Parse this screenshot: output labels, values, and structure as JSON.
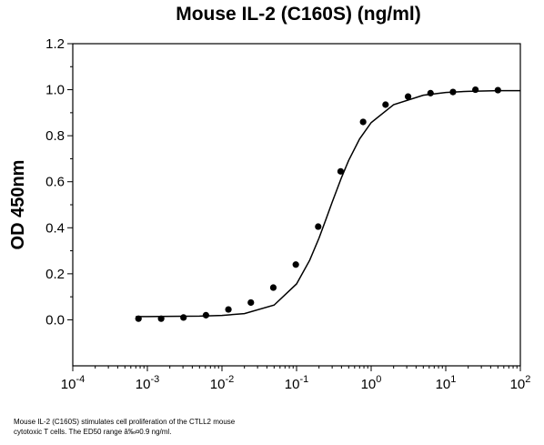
{
  "chart_data": {
    "type": "scatter",
    "title": "Mouse IL-2 (C160S) (ng/ml)",
    "xlabel": "",
    "ylabel": "OD 450nm",
    "x_scale": "log",
    "xlim": [
      0.0001,
      100
    ],
    "ylim": [
      -0.2,
      1.2
    ],
    "x_tick_labels": [
      {
        "base": "10",
        "exp": "-4"
      },
      {
        "base": "10",
        "exp": "-3"
      },
      {
        "base": "10",
        "exp": "-2"
      },
      {
        "base": "10",
        "exp": "-1"
      },
      {
        "base": "10",
        "exp": "0"
      },
      {
        "base": "10",
        "exp": "1"
      },
      {
        "base": "10",
        "exp": "2"
      }
    ],
    "y_tick_labels": [
      "0.0",
      "0.2",
      "0.4",
      "0.6",
      "0.8",
      "1.0",
      "1.2"
    ],
    "grid": false,
    "legend": "none",
    "series": [
      {
        "style": "points",
        "x": [
          0.00076,
          0.00153,
          0.00305,
          0.0061,
          0.0122,
          0.0244,
          0.0488,
          0.0977,
          0.195,
          0.39,
          0.78,
          1.56,
          3.125,
          6.25,
          12.5,
          25,
          50
        ],
        "y": [
          0.005,
          0.005,
          0.01,
          0.02,
          0.045,
          0.075,
          0.14,
          0.24,
          0.405,
          0.645,
          0.86,
          0.935,
          0.97,
          0.985,
          0.99,
          1.0,
          0.998
        ]
      },
      {
        "style": "curve",
        "x": [
          0.0007,
          0.001,
          0.002,
          0.005,
          0.01,
          0.02,
          0.05,
          0.1,
          0.15,
          0.2,
          0.25,
          0.3,
          0.4,
          0.5,
          0.7,
          1,
          2,
          5,
          10,
          20,
          50,
          100
        ],
        "y": [
          0.014,
          0.014,
          0.015,
          0.016,
          0.019,
          0.027,
          0.064,
          0.156,
          0.259,
          0.355,
          0.44,
          0.511,
          0.618,
          0.693,
          0.786,
          0.857,
          0.935,
          0.976,
          0.988,
          0.993,
          0.996,
          0.996
        ]
      }
    ],
    "colors": {
      "marker": "#000000",
      "line": "#000000",
      "axes": "#000000"
    }
  },
  "caption": {
    "line1": "Mouse IL-2 (C160S) stimulates cell proliferation of the CTLL2 mouse",
    "line2": "cytotoxic T cells. The ED50 range â‰¤0.9 ng/ml."
  }
}
